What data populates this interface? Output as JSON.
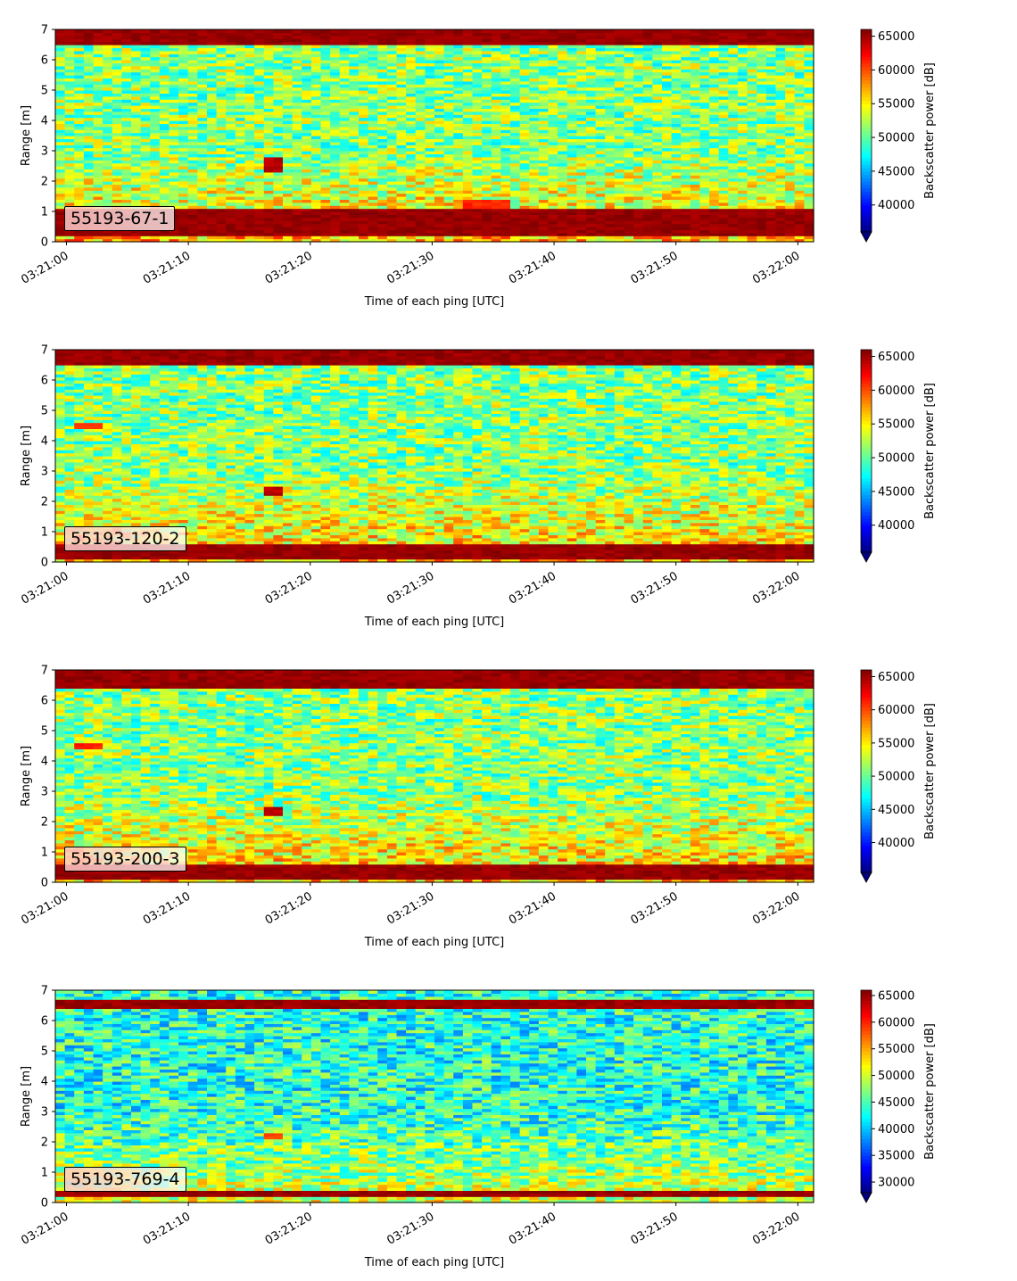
{
  "figure": {
    "x_tick_labels": [
      "03:21:00",
      "03:21:10",
      "03:21:20",
      "03:21:30",
      "03:21:40",
      "03:21:50",
      "03:22:00"
    ],
    "y_tick_labels": [
      "0",
      "1",
      "2",
      "3",
      "4",
      "5",
      "6",
      "7"
    ],
    "xlabel": "Time of each ping [UTC]",
    "ylabel": "Range [m]",
    "colorbar_label": "Backscatter power [dB]",
    "colormap": "jet"
  },
  "chart_data": [
    {
      "type": "heatmap",
      "annotation": "55193-67-1",
      "xlabel": "Time of each ping [UTC]",
      "ylabel": "Range [m]",
      "x_range": [
        "03:21:00",
        "03:22:00"
      ],
      "ylim": [
        0,
        7
      ],
      "colorbar": {
        "label": "Backscatter power [dB]",
        "ticks": [
          40000,
          45000,
          50000,
          55000,
          60000,
          65000
        ],
        "range": [
          36000,
          66000
        ],
        "extend": "min"
      },
      "features": [
        {
          "desc": "strong return band",
          "y_from": 0.2,
          "y_to": 1.1,
          "level": 66000
        },
        {
          "desc": "strong return band",
          "y_from": 6.5,
          "y_to": 7.0,
          "level": 66000
        },
        {
          "desc": "hot spot",
          "t_from": "03:21:16",
          "t_to": "03:21:18",
          "y_from": 2.3,
          "y_to": 2.8,
          "level": 65000
        },
        {
          "desc": "warm patch",
          "t_from": "03:21:32",
          "t_to": "03:21:36",
          "y_from": 1.0,
          "y_to": 1.4,
          "level": 62000
        }
      ]
    },
    {
      "type": "heatmap",
      "annotation": "55193-120-2",
      "xlabel": "Time of each ping [UTC]",
      "ylabel": "Range [m]",
      "x_range": [
        "03:21:00",
        "03:22:00"
      ],
      "ylim": [
        0,
        7
      ],
      "colorbar": {
        "label": "Backscatter power [dB]",
        "ticks": [
          40000,
          45000,
          50000,
          55000,
          60000,
          65000
        ],
        "range": [
          36000,
          66000
        ],
        "extend": "min"
      },
      "features": [
        {
          "desc": "strong return band",
          "y_from": 0.1,
          "y_to": 0.6,
          "level": 66000
        },
        {
          "desc": "strong return band",
          "y_from": 6.5,
          "y_to": 7.0,
          "level": 66000
        },
        {
          "desc": "hot spot",
          "t_from": "03:21:16",
          "t_to": "03:21:18",
          "y_from": 2.2,
          "y_to": 2.5,
          "level": 65000
        },
        {
          "desc": "hot spot",
          "t_from": "03:21:01",
          "t_to": "03:21:03",
          "y_from": 4.4,
          "y_to": 4.6,
          "level": 62000
        }
      ]
    },
    {
      "type": "heatmap",
      "annotation": "55193-200-3",
      "xlabel": "Time of each ping [UTC]",
      "ylabel": "Range [m]",
      "x_range": [
        "03:21:00",
        "03:22:00"
      ],
      "ylim": [
        0,
        7
      ],
      "colorbar": {
        "label": "Backscatter power [dB]",
        "ticks": [
          40000,
          45000,
          50000,
          55000,
          60000,
          65000
        ],
        "range": [
          35500,
          66000
        ],
        "extend": "min"
      },
      "features": [
        {
          "desc": "strong return band",
          "y_from": 0.1,
          "y_to": 0.6,
          "level": 66000
        },
        {
          "desc": "strong return band",
          "y_from": 6.4,
          "y_to": 7.0,
          "level": 66000
        },
        {
          "desc": "hot spot",
          "t_from": "03:21:16",
          "t_to": "03:21:18",
          "y_from": 2.2,
          "y_to": 2.5,
          "level": 65000
        },
        {
          "desc": "hot spot",
          "t_from": "03:21:01",
          "t_to": "03:21:03",
          "y_from": 4.4,
          "y_to": 4.6,
          "level": 62000
        }
      ]
    },
    {
      "type": "heatmap",
      "annotation": "55193-769-4",
      "xlabel": "Time of each ping [UTC]",
      "ylabel": "Range [m]",
      "x_range": [
        "03:21:00",
        "03:22:00"
      ],
      "ylim": [
        0,
        7
      ],
      "colorbar": {
        "label": "Backscatter power [dB]",
        "ticks": [
          30000,
          35000,
          40000,
          45000,
          50000,
          55000,
          60000,
          65000
        ],
        "range": [
          28000,
          66000
        ],
        "extend": "min"
      },
      "features": [
        {
          "desc": "strong return band",
          "y_from": 0.2,
          "y_to": 0.4,
          "level": 66000
        },
        {
          "desc": "strong return band",
          "y_from": 6.4,
          "y_to": 6.7,
          "level": 66000
        },
        {
          "desc": "hot spot",
          "t_from": "03:21:16",
          "t_to": "03:21:18",
          "y_from": 2.1,
          "y_to": 2.3,
          "level": 60000
        }
      ]
    }
  ]
}
